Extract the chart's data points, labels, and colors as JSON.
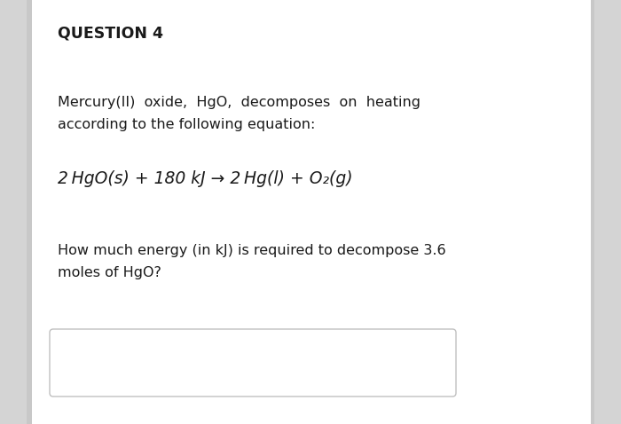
{
  "background_color": "#d4d4d4",
  "card_color": "#ffffff",
  "title": "QUESTION 4",
  "title_fontsize": 12.5,
  "body_text1_line1": "Mercury(II)  oxide,  HgO,  decomposes  on  heating",
  "body_text1_line2": "according to the following equation:",
  "equation": "2 HgO(s) + 180 kJ → 2 Hg(l) + O₂(g)",
  "body_text2_line1": "How much energy (in kJ) is required to decompose 3.6",
  "body_text2_line2": "moles of HgO?",
  "body_fontsize": 11.5,
  "equation_fontsize": 13.5,
  "answer_box_color": "#ffffff",
  "answer_box_border": "#c0c0c0",
  "text_color": "#1a1a1a",
  "left_bar_color": "#c8c8c8"
}
